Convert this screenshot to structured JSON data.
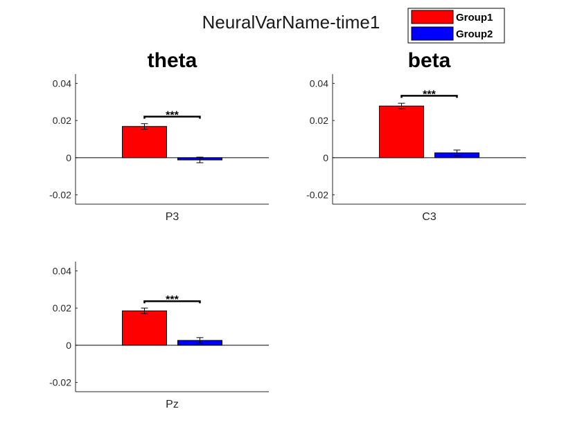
{
  "figure_title": "NeuralVarName-time1",
  "legend": {
    "placement": "top-right",
    "entries": [
      {
        "label": "Group1",
        "color": "#ff0000"
      },
      {
        "label": "Group2",
        "color": "#0000ff"
      }
    ]
  },
  "chart_data": [
    {
      "type": "bar",
      "title": "theta",
      "categories": [
        "P3"
      ],
      "ylim": [
        -0.025,
        0.045
      ],
      "yticks": [
        -0.02,
        0,
        0.02,
        0.04
      ],
      "ytick_labels": [
        "-0.02",
        "0",
        "0.02",
        "0.04"
      ],
      "series": [
        {
          "name": "Group1",
          "values": [
            0.0168
          ],
          "error": [
            0.0015
          ],
          "color": "#ff0000"
        },
        {
          "name": "Group2",
          "values": [
            -0.0012
          ],
          "error": [
            0.0015
          ],
          "color": "#0000ff"
        }
      ],
      "significance": {
        "label": "***",
        "value": 0.0221
      }
    },
    {
      "type": "bar",
      "title": "beta",
      "categories": [
        "C3"
      ],
      "ylim": [
        -0.025,
        0.045
      ],
      "yticks": [
        -0.02,
        0,
        0.02,
        0.04
      ],
      "ytick_labels": [
        "-0.02",
        "0",
        "0.02",
        "0.04"
      ],
      "series": [
        {
          "name": "Group1",
          "values": [
            0.0278
          ],
          "error": [
            0.0015
          ],
          "color": "#ff0000"
        },
        {
          "name": "Group2",
          "values": [
            0.0026
          ],
          "error": [
            0.0015
          ],
          "color": "#0000ff"
        }
      ],
      "significance": {
        "label": "***",
        "value": 0.0333
      }
    },
    {
      "type": "bar",
      "title": "",
      "categories": [
        "Pz"
      ],
      "ylim": [
        -0.025,
        0.045
      ],
      "yticks": [
        -0.02,
        0,
        0.02,
        0.04
      ],
      "ytick_labels": [
        "-0.02",
        "0",
        "0.02",
        "0.04"
      ],
      "series": [
        {
          "name": "Group1",
          "values": [
            0.0185
          ],
          "error": [
            0.0015
          ],
          "color": "#ff0000"
        },
        {
          "name": "Group2",
          "values": [
            0.0026
          ],
          "error": [
            0.0015
          ],
          "color": "#0000ff"
        }
      ],
      "significance": {
        "label": "***",
        "value": 0.0237
      }
    }
  ]
}
